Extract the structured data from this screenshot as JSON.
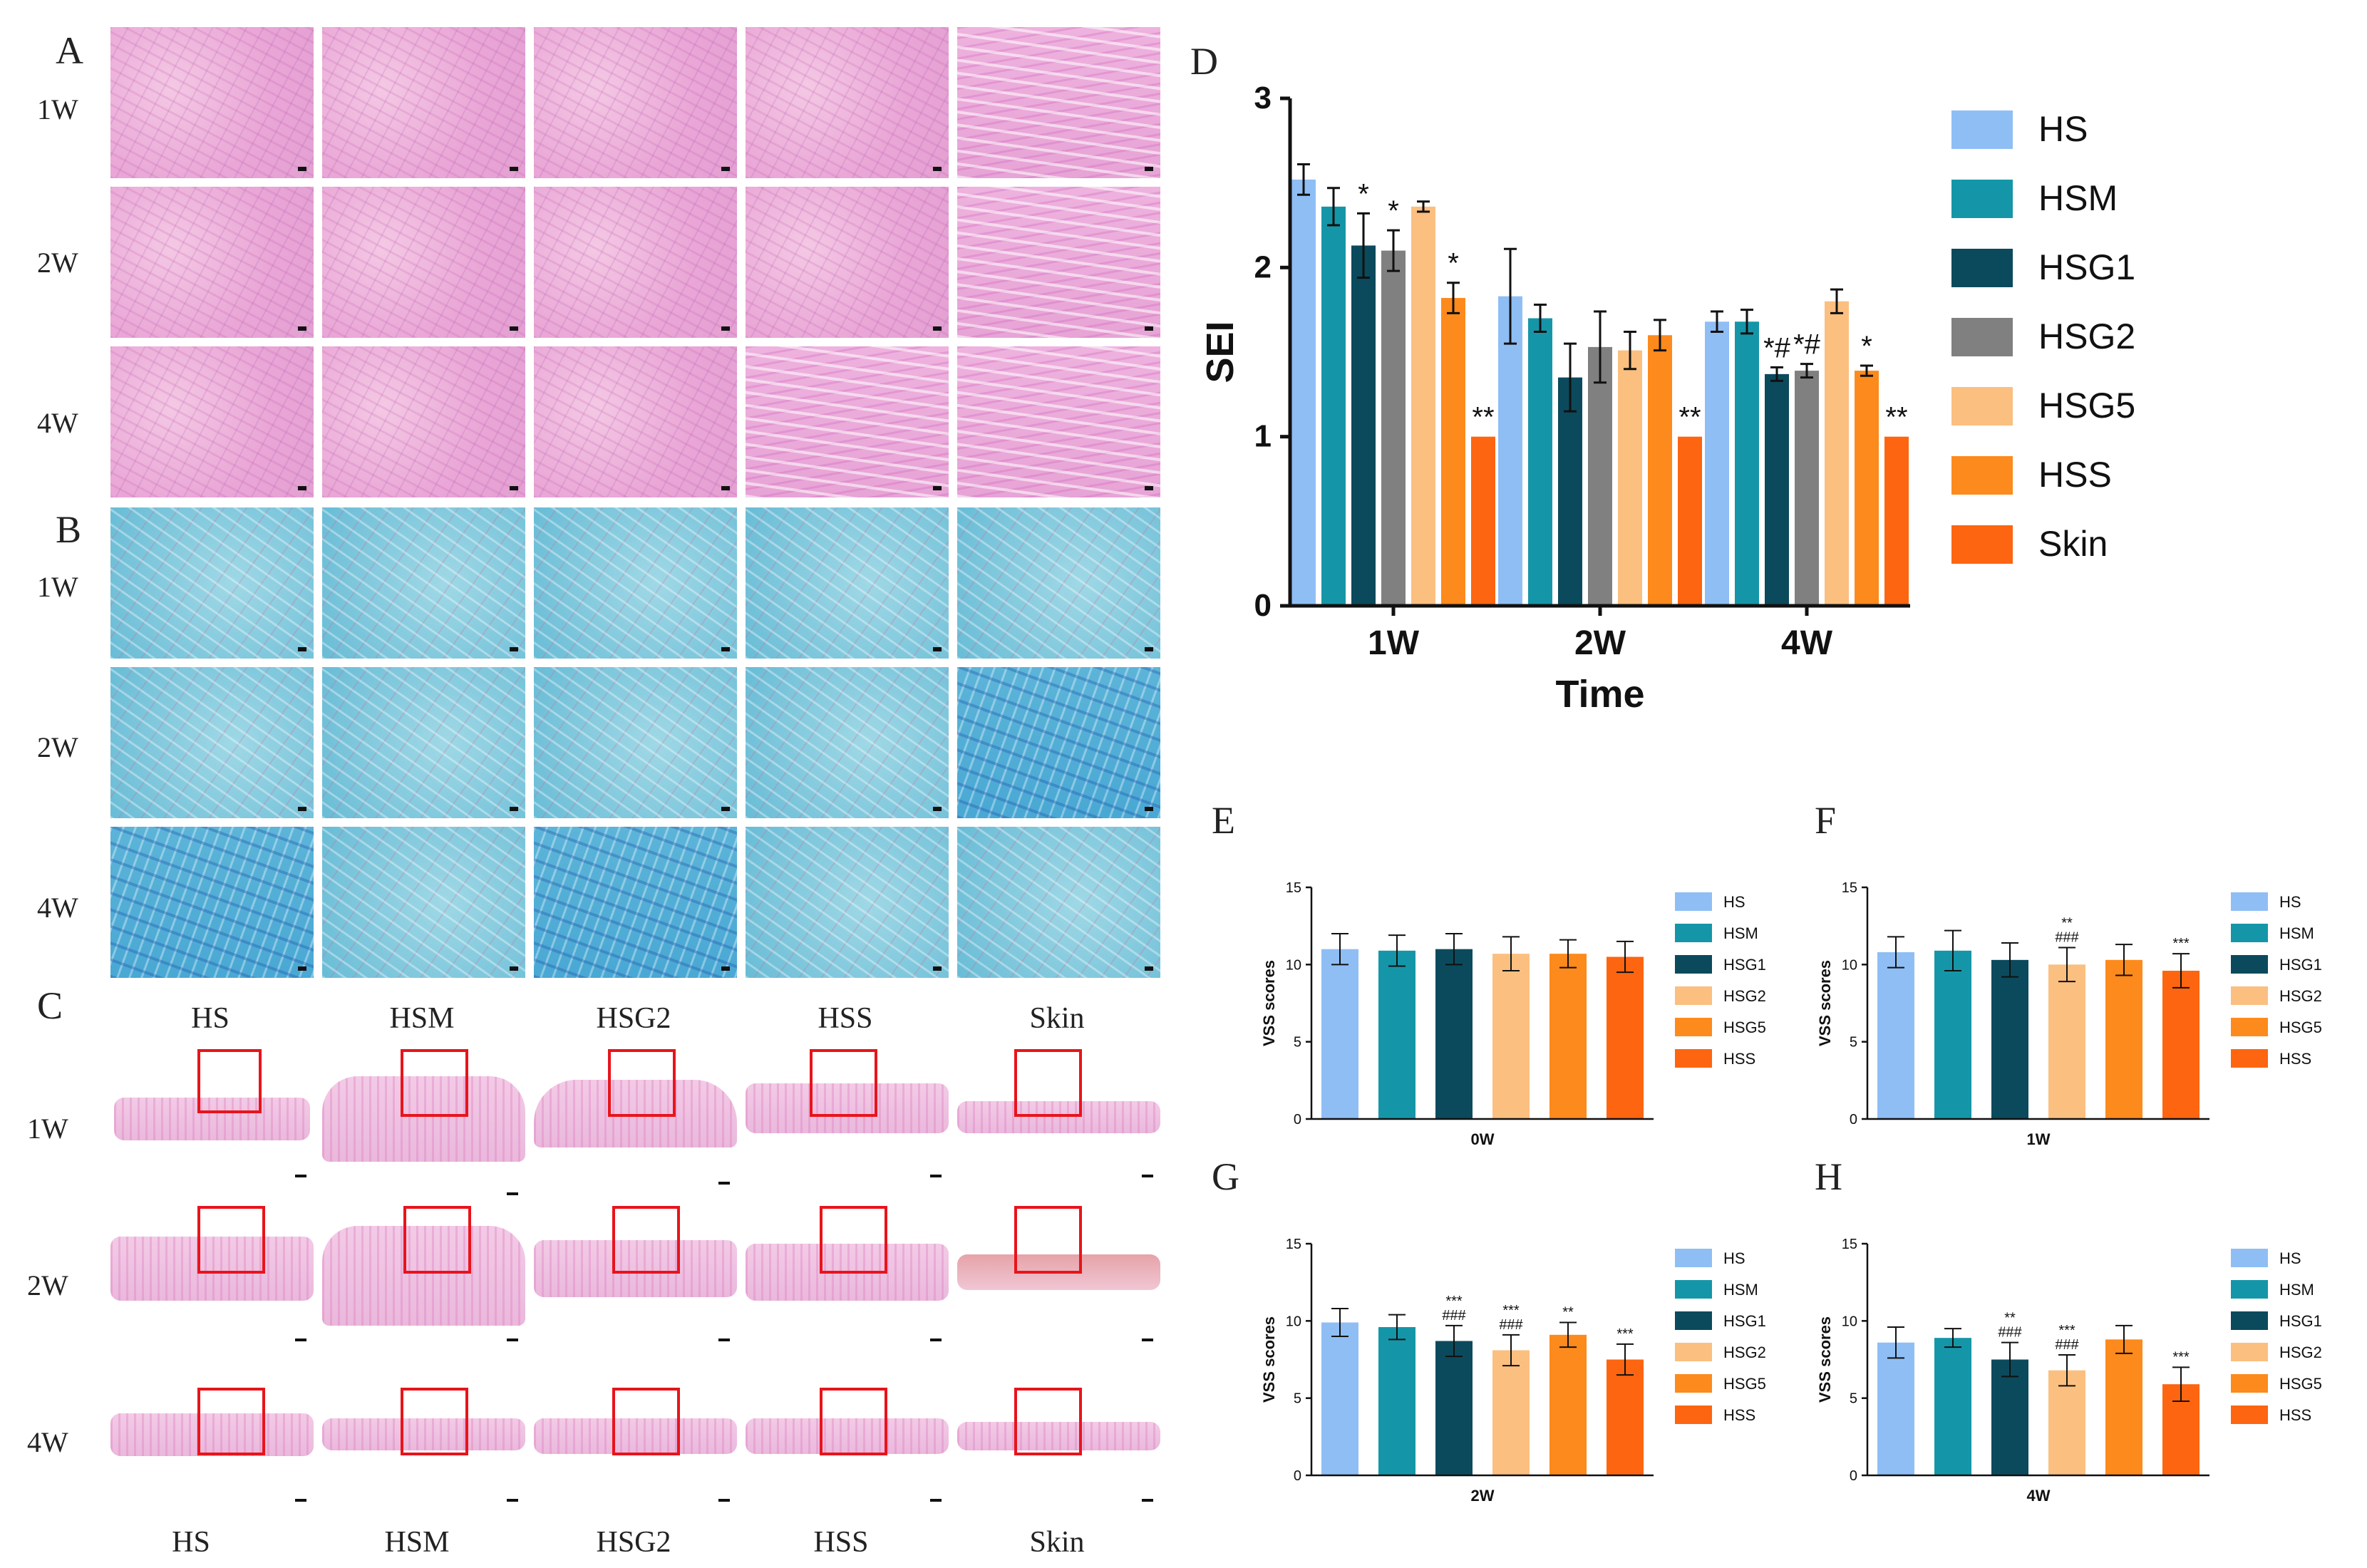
{
  "panel_labels": {
    "A": "A",
    "B": "B",
    "C": "C",
    "D": "D",
    "E": "E",
    "F": "F",
    "G": "G",
    "H": "H"
  },
  "rows": {
    "w1": "1W",
    "w2": "2W",
    "w4": "4W"
  },
  "groups_C": [
    "HS",
    "HSM",
    "HSG2",
    "HSS",
    "Skin"
  ],
  "chart_data": [
    {
      "panel": "D",
      "type": "bar",
      "categories": [
        "1W",
        "2W",
        "4W"
      ],
      "xlabel": "Time",
      "ylabel": "SEI",
      "ylim": [
        0,
        3
      ],
      "yticks": [
        0,
        1,
        2,
        3
      ],
      "legend_position": "right",
      "series": [
        {
          "name": "HS",
          "color": "#8fbef5",
          "values": [
            2.52,
            1.83,
            1.68
          ],
          "errors": [
            0.09,
            0.28,
            0.06
          ],
          "annotations": [
            "",
            "",
            ""
          ]
        },
        {
          "name": "HSM",
          "color": "#1596a8",
          "values": [
            2.36,
            1.7,
            1.68
          ],
          "errors": [
            0.11,
            0.08,
            0.07
          ],
          "annotations": [
            "",
            "",
            ""
          ]
        },
        {
          "name": "HSG1",
          "color": "#0b4a5c",
          "values": [
            2.13,
            1.35,
            1.37
          ],
          "errors": [
            0.19,
            0.2,
            0.04
          ],
          "annotations": [
            "*",
            "",
            "*#"
          ]
        },
        {
          "name": "HSG2",
          "color": "#808080",
          "values": [
            2.1,
            1.53,
            1.39
          ],
          "errors": [
            0.12,
            0.21,
            0.04
          ],
          "annotations": [
            "*",
            "",
            "*#"
          ]
        },
        {
          "name": "HSG5",
          "color": "#fbbf80",
          "values": [
            2.36,
            1.51,
            1.8
          ],
          "errors": [
            0.03,
            0.11,
            0.07
          ],
          "annotations": [
            "",
            "",
            ""
          ]
        },
        {
          "name": "HSS",
          "color": "#fd8a1c",
          "values": [
            1.82,
            1.6,
            1.39
          ],
          "errors": [
            0.09,
            0.09,
            0.03
          ],
          "annotations": [
            "*",
            "",
            "*"
          ]
        },
        {
          "name": "Skin",
          "color": "#fd6510",
          "values": [
            1.0,
            1.0,
            1.0
          ],
          "errors": [
            0,
            0,
            0
          ],
          "annotations": [
            "**",
            "**",
            "**"
          ]
        }
      ]
    },
    {
      "panel": "E",
      "type": "bar",
      "xlabel": "0W",
      "ylabel": "VSS scores",
      "ylim": [
        0,
        15
      ],
      "yticks": [
        0,
        5,
        10,
        15
      ],
      "legend_position": "right",
      "series": [
        {
          "name": "HS",
          "color": "#8fbef5",
          "value": 11.0,
          "error": 1.0,
          "annotation": ""
        },
        {
          "name": "HSM",
          "color": "#1596a8",
          "value": 10.9,
          "error": 1.0,
          "annotation": ""
        },
        {
          "name": "HSG1",
          "color": "#0b4a5c",
          "value": 11.0,
          "error": 1.0,
          "annotation": ""
        },
        {
          "name": "HSG2",
          "color": "#fbbf80",
          "value": 10.7,
          "error": 1.1,
          "annotation": ""
        },
        {
          "name": "HSG5",
          "color": "#fd8a1c",
          "value": 10.7,
          "error": 0.9,
          "annotation": ""
        },
        {
          "name": "HSS",
          "color": "#fd6510",
          "value": 10.5,
          "error": 1.0,
          "annotation": ""
        }
      ]
    },
    {
      "panel": "F",
      "type": "bar",
      "xlabel": "1W",
      "ylabel": "VSS scores",
      "ylim": [
        0,
        15
      ],
      "yticks": [
        0,
        5,
        10,
        15
      ],
      "legend_position": "right",
      "series": [
        {
          "name": "HS",
          "color": "#8fbef5",
          "value": 10.8,
          "error": 1.0,
          "annotation": ""
        },
        {
          "name": "HSM",
          "color": "#1596a8",
          "value": 10.9,
          "error": 1.3,
          "annotation": ""
        },
        {
          "name": "HSG1",
          "color": "#0b4a5c",
          "value": 10.3,
          "error": 1.1,
          "annotation": ""
        },
        {
          "name": "HSG2",
          "color": "#fbbf80",
          "value": 10.0,
          "error": 1.1,
          "annotation": "**\n###"
        },
        {
          "name": "HSG5",
          "color": "#fd8a1c",
          "value": 10.3,
          "error": 1.0,
          "annotation": ""
        },
        {
          "name": "HSS",
          "color": "#fd6510",
          "value": 9.6,
          "error": 1.1,
          "annotation": "***"
        }
      ]
    },
    {
      "panel": "G",
      "type": "bar",
      "xlabel": "2W",
      "ylabel": "VSS scores",
      "ylim": [
        0,
        15
      ],
      "yticks": [
        0,
        5,
        10,
        15
      ],
      "legend_position": "right",
      "series": [
        {
          "name": "HS",
          "color": "#8fbef5",
          "value": 9.9,
          "error": 0.9,
          "annotation": ""
        },
        {
          "name": "HSM",
          "color": "#1596a8",
          "value": 9.6,
          "error": 0.8,
          "annotation": ""
        },
        {
          "name": "HSG1",
          "color": "#0b4a5c",
          "value": 8.7,
          "error": 1.0,
          "annotation": "***\n###"
        },
        {
          "name": "HSG2",
          "color": "#fbbf80",
          "value": 8.1,
          "error": 1.0,
          "annotation": "***\n###"
        },
        {
          "name": "HSG5",
          "color": "#fd8a1c",
          "value": 9.1,
          "error": 0.8,
          "annotation": "**"
        },
        {
          "name": "HSS",
          "color": "#fd6510",
          "value": 7.5,
          "error": 1.0,
          "annotation": "***"
        }
      ]
    },
    {
      "panel": "H",
      "type": "bar",
      "xlabel": "4W",
      "ylabel": "VSS scores",
      "ylim": [
        0,
        15
      ],
      "yticks": [
        0,
        5,
        10,
        15
      ],
      "legend_position": "right",
      "series": [
        {
          "name": "HS",
          "color": "#8fbef5",
          "value": 8.6,
          "error": 1.0,
          "annotation": ""
        },
        {
          "name": "HSM",
          "color": "#1596a8",
          "value": 8.9,
          "error": 0.6,
          "annotation": ""
        },
        {
          "name": "HSG1",
          "color": "#0b4a5c",
          "value": 7.5,
          "error": 1.1,
          "annotation": "**\n###"
        },
        {
          "name": "HSG2",
          "color": "#fbbf80",
          "value": 6.8,
          "error": 1.0,
          "annotation": "***\n###"
        },
        {
          "name": "HSG5",
          "color": "#fd8a1c",
          "value": 8.8,
          "error": 0.9,
          "annotation": ""
        },
        {
          "name": "HSS",
          "color": "#fd6510",
          "value": 5.9,
          "error": 1.1,
          "annotation": "***"
        }
      ]
    }
  ]
}
